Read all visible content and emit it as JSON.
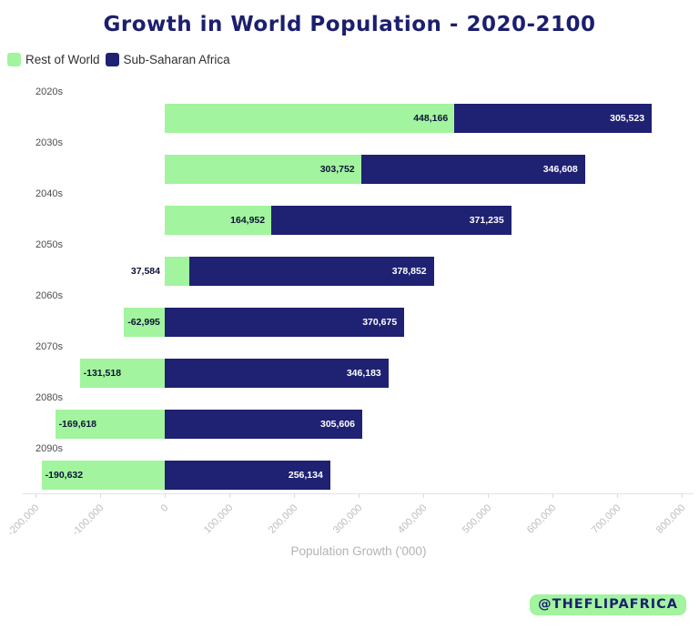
{
  "title": "Growth in World Population - 2020-2100",
  "watermark": {
    "text": "@THEFLIPAFRICA",
    "bg": "#a2f49e",
    "color": "#1b1f6e"
  },
  "chart_data": {
    "type": "bar",
    "orientation": "horizontal",
    "stacked": true,
    "diverging": true,
    "title": "Growth in World Population - 2020-2100",
    "categories": [
      "2020s",
      "2030s",
      "2040s",
      "2050s",
      "2060s",
      "2070s",
      "2080s",
      "2090s"
    ],
    "series": [
      {
        "name": "Rest of World",
        "color": "#a2f49e",
        "values": [
          448166,
          303752,
          164952,
          37584,
          -62995,
          -131518,
          -169618,
          -190632
        ],
        "labels": [
          "448,166",
          "303,752",
          "164,952",
          "37,584",
          "-62,995",
          "-131,518",
          "-169,618",
          "-190,632"
        ]
      },
      {
        "name": "Sub-Saharan Africa",
        "color": "#1f2173",
        "values": [
          305523,
          346608,
          371235,
          378852,
          370675,
          346183,
          305606,
          256134
        ],
        "labels": [
          "305,523",
          "346,608",
          "371,235",
          "378,852",
          "370,675",
          "346,183",
          "305,606",
          "256,134"
        ]
      }
    ],
    "xlabel": "Population Growth ('000)",
    "xlim": [
      -200000,
      800000
    ],
    "xticks": {
      "values": [
        -200000,
        -100000,
        0,
        100000,
        200000,
        300000,
        400000,
        500000,
        600000,
        700000,
        800000
      ],
      "labels": [
        "-200,000",
        "-100,000",
        "0",
        "100,000",
        "200,000",
        "300,000",
        "400,000",
        "500,000",
        "600,000",
        "700,000",
        "800,000"
      ]
    },
    "grid": false,
    "legend_position": "top-left",
    "value_label_colors": {
      "on_rest_of_world": "#0d1335",
      "on_sub_saharan": "#ffffff"
    }
  }
}
